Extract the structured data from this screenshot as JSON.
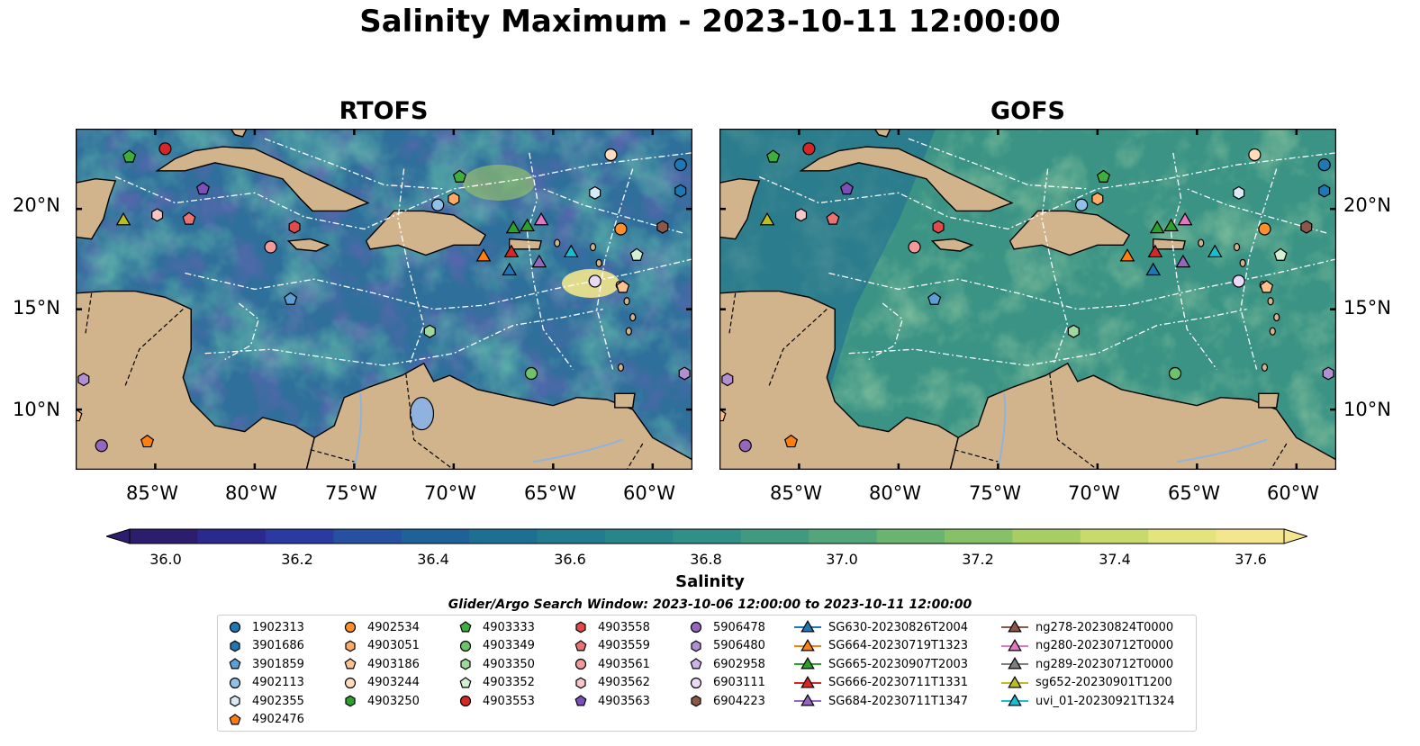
{
  "title": "Salinity Maximum - 2023-10-11 12:00:00",
  "panels": [
    {
      "title": "RTOFS"
    },
    {
      "title": "GOFS"
    }
  ],
  "axes": {
    "lat_ticks": [
      "20°N",
      "15°N",
      "10°N"
    ],
    "lon_ticks": [
      "85°W",
      "80°W",
      "75°W",
      "70°W",
      "65°W",
      "60°W"
    ]
  },
  "colorbar": {
    "label": "Salinity",
    "ticks": [
      "36.0",
      "36.2",
      "36.4",
      "36.6",
      "36.8",
      "37.0",
      "37.2",
      "37.4",
      "37.6"
    ],
    "colors": [
      "#2c1e6c",
      "#2a2a8e",
      "#2a3aa0",
      "#2650a0",
      "#1f629a",
      "#1e6f94",
      "#227b8e",
      "#28868a",
      "#308f86",
      "#3f9a80",
      "#52a679",
      "#6ab46f",
      "#86c167",
      "#a7cd63",
      "#c8da6c",
      "#e4e47f",
      "#f4e68f"
    ]
  },
  "search_window": "Glider/Argo Search Window: 2023-10-06 12:00:00 to 2023-10-11 12:00:00",
  "legend": {
    "columns": [
      [
        {
          "label": "1902313",
          "marker": "circle",
          "color": "#1f77b4"
        },
        {
          "label": "3901686",
          "marker": "hexagon",
          "color": "#1f77b4"
        },
        {
          "label": "3901859",
          "marker": "pentagon",
          "color": "#5aa0d6"
        },
        {
          "label": "4902113",
          "marker": "circle",
          "color": "#8ec0e8"
        },
        {
          "label": "4902355",
          "marker": "hexagon",
          "color": "#d8e9f7"
        },
        {
          "label": "4902476",
          "marker": "pentagon",
          "color": "#ff7f0e"
        }
      ],
      [
        {
          "label": "4902534",
          "marker": "circle",
          "color": "#ff8f2a"
        },
        {
          "label": "4903051",
          "marker": "hexagon",
          "color": "#ffab66"
        },
        {
          "label": "4903186",
          "marker": "pentagon",
          "color": "#ffc28f"
        },
        {
          "label": "4903244",
          "marker": "circle",
          "color": "#ffdcbc"
        },
        {
          "label": "4903250",
          "marker": "hexagon",
          "color": "#2ca02c"
        }
      ],
      [
        {
          "label": "4903333",
          "marker": "pentagon",
          "color": "#3fae3f"
        },
        {
          "label": "4903349",
          "marker": "circle",
          "color": "#6cc36c"
        },
        {
          "label": "4903350",
          "marker": "hexagon",
          "color": "#9ed89e"
        },
        {
          "label": "4903352",
          "marker": "pentagon",
          "color": "#d3f0d3"
        },
        {
          "label": "4903553",
          "marker": "circle",
          "color": "#d62728"
        }
      ],
      [
        {
          "label": "4903558",
          "marker": "hexagon",
          "color": "#e04a4b"
        },
        {
          "label": "4903559",
          "marker": "pentagon",
          "color": "#ea7273"
        },
        {
          "label": "4903561",
          "marker": "circle",
          "color": "#f29a9a"
        },
        {
          "label": "4903562",
          "marker": "hexagon",
          "color": "#f8c6c6"
        },
        {
          "label": "4903563",
          "marker": "pentagon",
          "color": "#7b4fb8"
        }
      ],
      [
        {
          "label": "5906478",
          "marker": "circle",
          "color": "#9467bd"
        },
        {
          "label": "5906480",
          "marker": "hexagon",
          "color": "#b18fd2"
        },
        {
          "label": "6902958",
          "marker": "pentagon",
          "color": "#cdb4e6"
        },
        {
          "label": "6903111",
          "marker": "circle",
          "color": "#ead9f7"
        },
        {
          "label": "6904223",
          "marker": "hexagon",
          "color": "#8c564b"
        }
      ],
      [
        {
          "label": "SG630-20230826T2004",
          "marker": "triangle-line",
          "color": "#1f77b4"
        },
        {
          "label": "SG664-20230719T1323",
          "marker": "triangle-line",
          "color": "#ff7f0e"
        },
        {
          "label": "SG665-20230907T2003",
          "marker": "triangle-line",
          "color": "#2ca02c"
        },
        {
          "label": "SG666-20230711T1331",
          "marker": "triangle-line",
          "color": "#d62728"
        },
        {
          "label": "SG684-20230711T1347",
          "marker": "triangle-line",
          "color": "#9467bd"
        }
      ],
      [
        {
          "label": "ng278-20230824T0000",
          "marker": "triangle-line",
          "color": "#8c564b"
        },
        {
          "label": "ng280-20230712T0000",
          "marker": "triangle-line",
          "color": "#e377c2"
        },
        {
          "label": "ng289-20230712T0000",
          "marker": "triangle-line",
          "color": "#7f7f7f"
        },
        {
          "label": "sg652-20230901T1200",
          "marker": "triangle-line",
          "color": "#bcbd22"
        },
        {
          "label": "uvi_01-20230921T1324",
          "marker": "triangle-line",
          "color": "#17becf"
        }
      ]
    ]
  },
  "map_data": {
    "lon_range": [
      -89,
      -58
    ],
    "lat_range": [
      7,
      24
    ],
    "ocean_rtofs": "#2f6f9b",
    "ocean_gofs": "#3e9a86",
    "land_color": "#d2b48c",
    "markers": [
      {
        "lon": -86.3,
        "lat": 22.6,
        "marker": "pentagon",
        "color": "#3fae3f"
      },
      {
        "lon": -84.5,
        "lat": 23.0,
        "marker": "circle",
        "color": "#d62728"
      },
      {
        "lon": -82.6,
        "lat": 21.0,
        "marker": "pentagon",
        "color": "#7b4fb8"
      },
      {
        "lon": -86.6,
        "lat": 19.4,
        "marker": "triangle",
        "color": "#bcbd22"
      },
      {
        "lon": -84.9,
        "lat": 19.7,
        "marker": "hexagon",
        "color": "#f8c6c6"
      },
      {
        "lon": -83.3,
        "lat": 19.5,
        "marker": "pentagon",
        "color": "#ea7273"
      },
      {
        "lon": -78.0,
        "lat": 19.1,
        "marker": "hexagon",
        "color": "#e04a4b"
      },
      {
        "lon": -79.2,
        "lat": 18.1,
        "marker": "circle",
        "color": "#f29a9a"
      },
      {
        "lon": -78.2,
        "lat": 15.5,
        "marker": "pentagon",
        "color": "#5aa0d6"
      },
      {
        "lon": -70.8,
        "lat": 20.2,
        "marker": "circle",
        "color": "#8ec0e8"
      },
      {
        "lon": -70.0,
        "lat": 20.5,
        "marker": "hexagon",
        "color": "#ffab66"
      },
      {
        "lon": -69.7,
        "lat": 21.6,
        "marker": "pentagon",
        "color": "#3fae3f"
      },
      {
        "lon": -71.2,
        "lat": 13.9,
        "marker": "hexagon",
        "color": "#9ed89e"
      },
      {
        "lon": -68.5,
        "lat": 17.6,
        "marker": "triangle",
        "color": "#ff7f0e"
      },
      {
        "lon": -67.1,
        "lat": 17.8,
        "marker": "triangle",
        "color": "#d62728"
      },
      {
        "lon": -67.2,
        "lat": 16.9,
        "marker": "triangle",
        "color": "#1f77b4"
      },
      {
        "lon": -67.0,
        "lat": 19.0,
        "marker": "triangle",
        "color": "#2ca02c"
      },
      {
        "lon": -66.3,
        "lat": 19.1,
        "marker": "triangle",
        "color": "#2ca02c"
      },
      {
        "lon": -65.6,
        "lat": 19.4,
        "marker": "triangle",
        "color": "#e377c2"
      },
      {
        "lon": -65.7,
        "lat": 17.3,
        "marker": "triangle",
        "color": "#9467bd"
      },
      {
        "lon": -64.1,
        "lat": 17.8,
        "marker": "triangle",
        "color": "#17becf"
      },
      {
        "lon": -66.1,
        "lat": 11.8,
        "marker": "circle",
        "color": "#6cc36c"
      },
      {
        "lon": -62.1,
        "lat": 22.7,
        "marker": "circle",
        "color": "#ffdcbc"
      },
      {
        "lon": -62.9,
        "lat": 20.8,
        "marker": "hexagon",
        "color": "#d8e9f7"
      },
      {
        "lon": -61.6,
        "lat": 19.0,
        "marker": "circle",
        "color": "#ff8f2a"
      },
      {
        "lon": -59.5,
        "lat": 19.1,
        "marker": "hexagon",
        "color": "#8c564b"
      },
      {
        "lon": -60.8,
        "lat": 17.7,
        "marker": "pentagon",
        "color": "#d3f0d3"
      },
      {
        "lon": -62.9,
        "lat": 16.4,
        "marker": "circle",
        "color": "#ead9f7"
      },
      {
        "lon": -61.5,
        "lat": 16.1,
        "marker": "pentagon",
        "color": "#ffc28f"
      },
      {
        "lon": -58.6,
        "lat": 22.2,
        "marker": "circle",
        "color": "#1f77b4"
      },
      {
        "lon": -58.6,
        "lat": 20.9,
        "marker": "hexagon",
        "color": "#1f77b4"
      },
      {
        "lon": -58.4,
        "lat": 11.8,
        "marker": "hexagon",
        "color": "#b18fd2"
      },
      {
        "lon": -88.6,
        "lat": 11.5,
        "marker": "hexagon",
        "color": "#b18fd2"
      },
      {
        "lon": -89.0,
        "lat": 9.7,
        "marker": "pentagon",
        "color": "#ffc28f"
      },
      {
        "lon": -87.7,
        "lat": 8.2,
        "marker": "circle",
        "color": "#9467bd"
      },
      {
        "lon": -85.4,
        "lat": 8.4,
        "marker": "pentagon",
        "color": "#ff7f0e"
      }
    ]
  }
}
